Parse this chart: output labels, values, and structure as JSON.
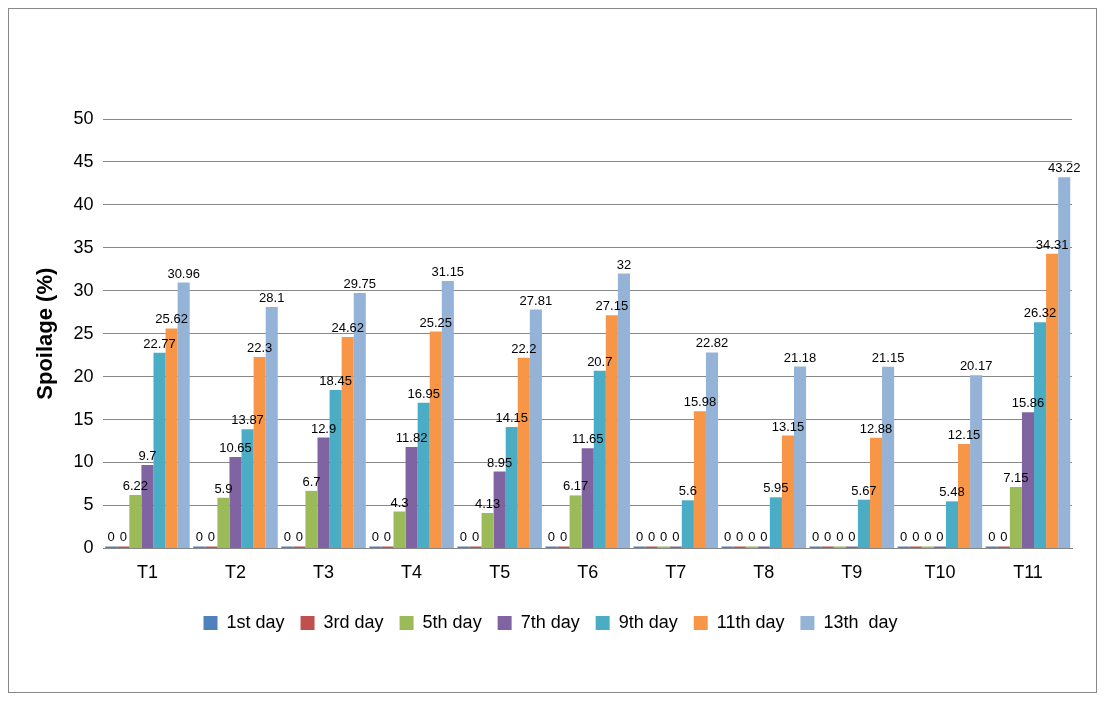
{
  "chart_data": {
    "type": "bar",
    "ylabel": "Spoilage (%)",
    "categories": [
      "T1",
      "T2",
      "T3",
      "T4",
      "T5",
      "T6",
      "T7",
      "T8",
      "T9",
      "T10",
      "T11"
    ],
    "series": [
      {
        "name": "1st day",
        "color": "#4f81bd",
        "values": [
          0,
          0,
          0,
          0,
          0,
          0,
          0,
          0,
          0,
          0,
          0
        ]
      },
      {
        "name": "3rd day",
        "color": "#c0504d",
        "values": [
          0,
          0,
          0,
          0,
          0,
          0,
          0,
          0,
          0,
          0,
          0
        ]
      },
      {
        "name": "5th day",
        "color": "#9bbb59",
        "values": [
          6.22,
          5.9,
          6.7,
          4.3,
          4.13,
          6.17,
          0,
          0,
          0,
          0,
          7.15
        ]
      },
      {
        "name": "7th day",
        "color": "#8064a2",
        "values": [
          9.7,
          10.65,
          12.9,
          11.82,
          8.95,
          11.65,
          0,
          0,
          0,
          0,
          15.86
        ]
      },
      {
        "name": "9th day",
        "color": "#4bacc6",
        "values": [
          22.77,
          13.87,
          18.45,
          16.95,
          14.15,
          20.7,
          5.6,
          5.95,
          5.67,
          5.48,
          26.32
        ]
      },
      {
        "name": "11th day",
        "color": "#f79646",
        "values": [
          25.62,
          22.3,
          24.62,
          25.25,
          22.2,
          27.15,
          15.98,
          13.15,
          12.88,
          12.15,
          34.31
        ]
      },
      {
        "name": "13th  day",
        "color": "#95b3d7",
        "values": [
          30.96,
          28.1,
          29.75,
          31.15,
          27.81,
          32,
          22.82,
          21.18,
          21.15,
          20.17,
          43.22
        ]
      }
    ],
    "ylim": [
      0,
      50
    ],
    "yticks": [
      0,
      5,
      10,
      15,
      20,
      25,
      30,
      35,
      40,
      45,
      50
    ],
    "grid": "y",
    "legend": "bottom",
    "data_labels": true
  }
}
